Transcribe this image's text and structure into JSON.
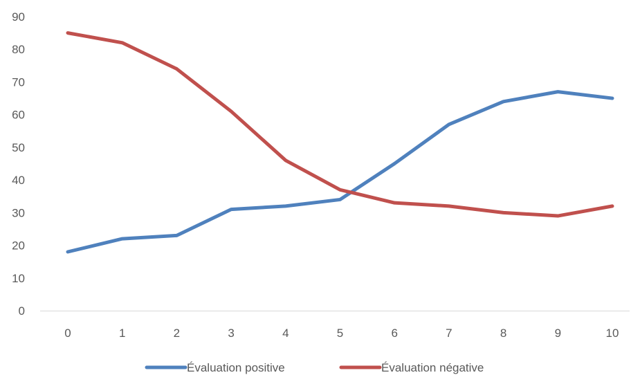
{
  "chart_data": {
    "type": "line",
    "x": [
      0,
      1,
      2,
      3,
      4,
      5,
      6,
      7,
      8,
      9,
      10
    ],
    "series": [
      {
        "name": "Évaluation positive",
        "color": "#4f81bd",
        "values": [
          18,
          22,
          23,
          31,
          32,
          34,
          45,
          57,
          64,
          67,
          65
        ]
      },
      {
        "name": "Évaluation négative",
        "color": "#c0504d",
        "values": [
          85,
          82,
          74,
          61,
          46,
          37,
          33,
          32,
          30,
          29,
          32
        ]
      }
    ],
    "ylim": [
      0,
      90
    ],
    "yticks": [
      0,
      10,
      20,
      30,
      40,
      50,
      60,
      70,
      80,
      90
    ],
    "xticks": [
      0,
      1,
      2,
      3,
      4,
      5,
      6,
      7,
      8,
      9,
      10
    ],
    "grid": false,
    "legend": "bottom"
  }
}
